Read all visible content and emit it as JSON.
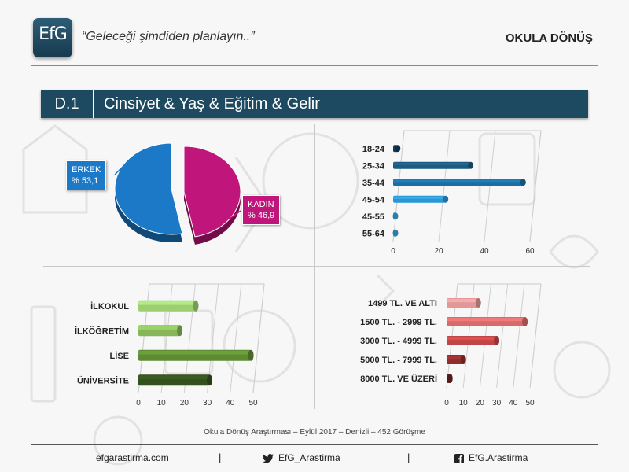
{
  "header": {
    "logo_text": "EfG",
    "slogan": "“Geleceği şimdiden planlayın..”",
    "section": "OKULA DÖNÜŞ"
  },
  "banner": {
    "code": "D.1",
    "title": "Cinsiyet & Yaş & Eğitim & Gelir"
  },
  "colors": {
    "banner": "#1d4a60",
    "male": "#1b79c8",
    "female": "#c0157a",
    "age_bars": [
      "#123b55",
      "#1d5a7e",
      "#1a6ea2",
      "#2a96d2",
      "#3aa8e0",
      "#3aa8e0"
    ],
    "edu_bars": [
      "#9ccf72",
      "#87b65a",
      "#5f8a34",
      "#34501d"
    ],
    "income_bars": [
      "#e39796",
      "#d86a6a",
      "#c04546",
      "#8f2d2e",
      "#6b2425"
    ]
  },
  "chart_data": [
    {
      "type": "pie",
      "labels": [
        "ERKEK",
        "KADIN"
      ],
      "values": [
        53.1,
        46.9
      ],
      "value_labels": [
        "% 53,1",
        "% 46,9"
      ]
    },
    {
      "type": "bar",
      "orientation": "horizontal",
      "categories": [
        "18-24",
        "25-34",
        "35-44",
        "45-54",
        "45-55",
        "55-64"
      ],
      "values": [
        2,
        34,
        57,
        23,
        1,
        1
      ],
      "xlim": [
        0,
        60
      ],
      "xticks": [
        "0",
        "20",
        "40",
        "60"
      ]
    },
    {
      "type": "bar",
      "orientation": "horizontal",
      "categories": [
        "İLKOKUL",
        "İLKÖĞRETİM",
        "LİSE",
        "ÜNİVERSİTE"
      ],
      "values": [
        25,
        18,
        49,
        31
      ],
      "xlim": [
        0,
        50
      ],
      "xticks": [
        "0",
        "10",
        "20",
        "30",
        "40",
        "50"
      ]
    },
    {
      "type": "bar",
      "orientation": "horizontal",
      "categories": [
        "1499 TL. VE ALTI",
        "1500 TL. - 2999 TL.",
        "3000 TL. - 4999 TL.",
        "5000 TL. - 7999 TL.",
        "8000 TL. VE ÜZERİ"
      ],
      "values": [
        19,
        47,
        30,
        10,
        2
      ],
      "xlim": [
        0,
        50
      ],
      "xticks": [
        "0",
        "10",
        "20",
        "30",
        "40",
        "50"
      ]
    }
  ],
  "footer": {
    "info": "Okula Dönüş Araştırması  – Eylül 2017 – Denizli – 452 Görüşme",
    "website": "efgarastirma.com",
    "separator": "|",
    "twitter": "EfG_Arastirma",
    "facebook": "EfG.Arastirma"
  }
}
